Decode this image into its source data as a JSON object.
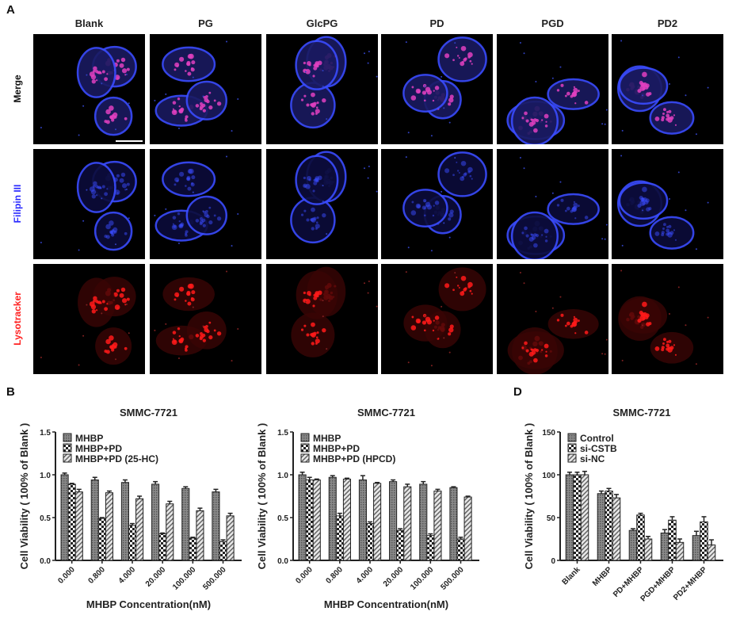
{
  "panels": {
    "a": "A",
    "b": "B",
    "d": "D"
  },
  "microscopy": {
    "columns": [
      "Blank",
      "PG",
      "GlcPG",
      "PD",
      "PGD",
      "PD2"
    ],
    "rows": [
      {
        "label": "Merge",
        "color": "#ffffff"
      },
      {
        "label": "Filipin III",
        "color": "#2a2aff"
      },
      {
        "label": "Lysotracker",
        "color": "#ff2020"
      }
    ],
    "channel_colors": {
      "filipin": "#3a4cff",
      "lysotracker": "#ff1a1a",
      "merge_overlap": "#e040c0"
    }
  },
  "chart_data": [
    {
      "type": "bar",
      "title": "SMMC-7721",
      "xlabel": "MHBP Concentration(nM)",
      "ylabel": "Cell Viability ( 100% of Blank )",
      "ylim": [
        0,
        1.5
      ],
      "yticks": [
        "0.0",
        "0.5",
        "1.0",
        "1.5"
      ],
      "categories": [
        "0.000",
        "0.800",
        "4.000",
        "20.000",
        "100.000",
        "500.000"
      ],
      "legend_position": "top-left",
      "series": [
        {
          "name": "MHBP",
          "pattern": "dense-dots",
          "values": [
            1.0,
            0.94,
            0.91,
            0.89,
            0.84,
            0.8
          ],
          "errors": [
            0.02,
            0.03,
            0.03,
            0.03,
            0.02,
            0.03
          ]
        },
        {
          "name": "MHBP+PD",
          "pattern": "checker",
          "values": [
            0.89,
            0.49,
            0.41,
            0.31,
            0.26,
            0.22
          ],
          "errors": [
            0.01,
            0.01,
            0.02,
            0.01,
            0.01,
            0.02
          ]
        },
        {
          "name": "MHBP+PD (25-HC)",
          "pattern": "diagonal",
          "values": [
            0.8,
            0.79,
            0.72,
            0.66,
            0.58,
            0.52
          ],
          "errors": [
            0.03,
            0.02,
            0.03,
            0.03,
            0.03,
            0.03
          ]
        }
      ]
    },
    {
      "type": "bar",
      "title": "SMMC-7721",
      "xlabel": "MHBP Concentration(nM)",
      "ylabel": "Cell Viability ( 100% of Blank )",
      "ylim": [
        0,
        1.5
      ],
      "yticks": [
        "0.0",
        "0.5",
        "1.0",
        "1.5"
      ],
      "categories": [
        "0.000",
        "0.800",
        "4.000",
        "20.000",
        "100.000",
        "500.000"
      ],
      "legend_position": "top-left",
      "series": [
        {
          "name": "MHBP",
          "pattern": "dense-dots",
          "values": [
            1.0,
            0.97,
            0.94,
            0.92,
            0.89,
            0.85
          ],
          "errors": [
            0.03,
            0.02,
            0.05,
            0.02,
            0.03,
            0.01
          ]
        },
        {
          "name": "MHBP+PD",
          "pattern": "checker",
          "values": [
            0.94,
            0.52,
            0.43,
            0.35,
            0.29,
            0.25
          ],
          "errors": [
            0.03,
            0.03,
            0.02,
            0.02,
            0.02,
            0.02
          ]
        },
        {
          "name": "MHBP+PD (HPCD)",
          "pattern": "diagonal",
          "values": [
            0.94,
            0.95,
            0.9,
            0.86,
            0.81,
            0.74
          ],
          "errors": [
            0.01,
            0.01,
            0.01,
            0.03,
            0.02,
            0.01
          ]
        }
      ]
    },
    {
      "type": "bar",
      "title": "SMMC-7721",
      "xlabel": "",
      "ylabel": "Cell Viability ( 100% of Blank )",
      "ylim": [
        0,
        150
      ],
      "yticks": [
        "0",
        "50",
        "100",
        "150"
      ],
      "categories": [
        "Blank",
        "MHBP",
        "PD+MHBP",
        "PGD+MHBP",
        "PD2+MHBP"
      ],
      "legend_position": "top-left",
      "series": [
        {
          "name": "Control",
          "pattern": "dense-dots",
          "values": [
            100,
            78,
            35,
            32,
            29
          ],
          "errors": [
            3,
            3,
            2,
            4,
            5
          ]
        },
        {
          "name": "si-CSTB",
          "pattern": "checker",
          "values": [
            100,
            81,
            53,
            47,
            45
          ],
          "errors": [
            3,
            3,
            2,
            4,
            6
          ]
        },
        {
          "name": "si-NC",
          "pattern": "diagonal",
          "values": [
            100,
            73,
            25,
            21,
            18
          ],
          "errors": [
            4,
            4,
            3,
            4,
            6
          ]
        }
      ]
    }
  ]
}
